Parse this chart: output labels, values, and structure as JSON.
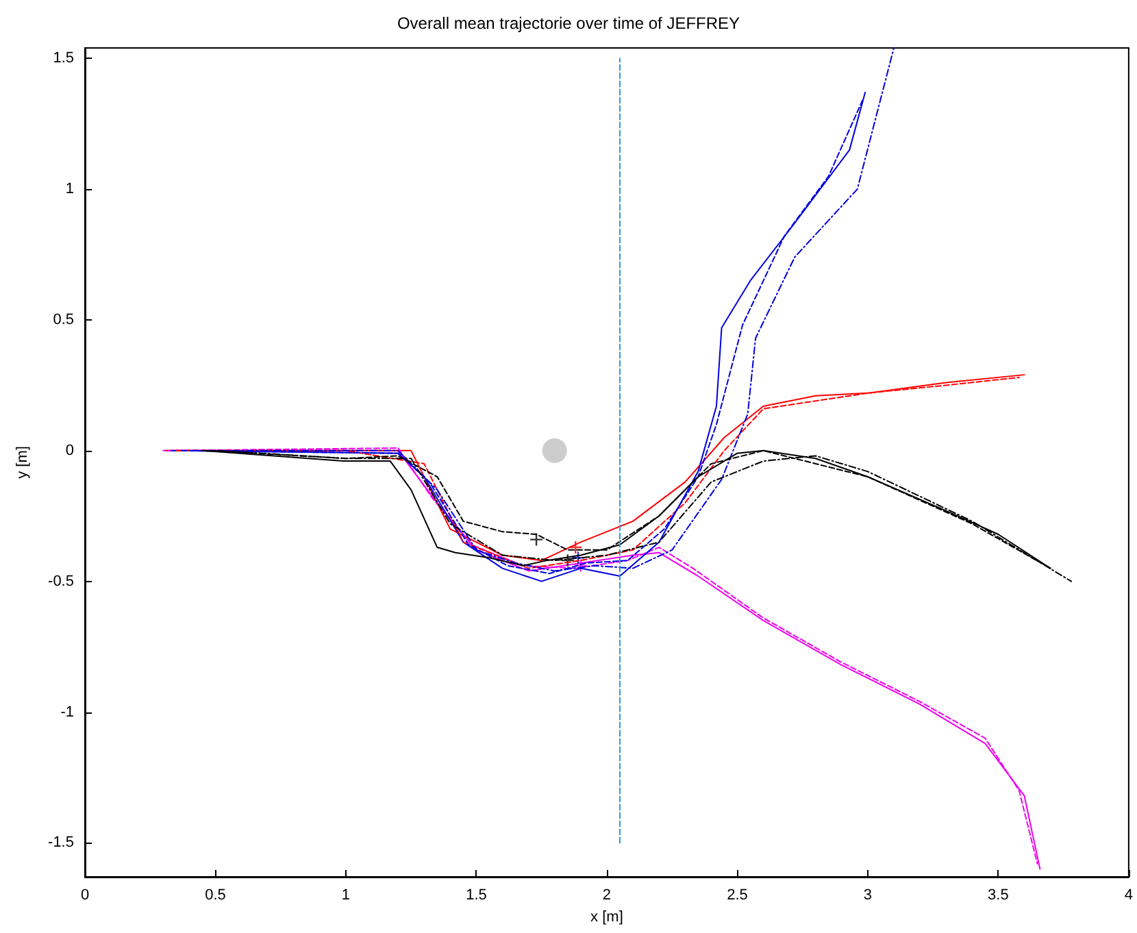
{
  "chart_data": {
    "type": "line",
    "title": "Overall mean trajectorie over time of JEFFREY",
    "xlabel": "x [m]",
    "ylabel": "y [m]",
    "xlim": [
      0,
      4
    ],
    "xticks": [
      0,
      0.5,
      1,
      1.5,
      2,
      2.5,
      3,
      3.5,
      4
    ],
    "ylim": [
      -1.63,
      1.54
    ],
    "yticks": [
      -1.5,
      -1,
      -0.5,
      0,
      0.5,
      1,
      1.5
    ],
    "grid": false,
    "marker": "none",
    "series": [
      {
        "color": "#000000",
        "line_style": "solid",
        "x": [
          0.45,
          0.99,
          1.17,
          1.25,
          1.35,
          1.42,
          1.55,
          1.68,
          1.77,
          1.9,
          2.05,
          2.2,
          2.35,
          2.5,
          2.6,
          2.8,
          3.0,
          3.3,
          3.5,
          3.7
        ],
        "values": [
          0,
          -0.04,
          -0.04,
          -0.15,
          -0.37,
          -0.39,
          -0.41,
          -0.44,
          -0.42,
          -0.4,
          -0.36,
          -0.25,
          -0.1,
          -0.01,
          0,
          -0.03,
          -0.1,
          -0.23,
          -0.32,
          -0.45
        ]
      },
      {
        "color": "#000000",
        "line_style": "dashed",
        "x": [
          0.48,
          1.0,
          1.2,
          1.35,
          1.45,
          1.6,
          1.73,
          1.85,
          2.0,
          2.2,
          2.4,
          2.6,
          3.0,
          3.4,
          3.7
        ],
        "values": [
          0,
          -0.03,
          -0.02,
          -0.1,
          -0.27,
          -0.31,
          -0.32,
          -0.38,
          -0.38,
          -0.25,
          -0.05,
          0,
          -0.1,
          -0.28,
          -0.45
        ]
      },
      {
        "color": "#000000",
        "line_style": "dashdot",
        "x": [
          0.51,
          1.0,
          1.25,
          1.4,
          1.6,
          1.8,
          2.0,
          2.2,
          2.4,
          2.6,
          2.8,
          3.0,
          3.4,
          3.78
        ],
        "values": [
          0,
          -0.03,
          -0.03,
          -0.28,
          -0.4,
          -0.42,
          -0.4,
          -0.35,
          -0.12,
          -0.04,
          -0.02,
          -0.08,
          -0.27,
          -0.5
        ]
      },
      {
        "color": "#0000dd",
        "line_style": "solid",
        "x": [
          0.33,
          1.2,
          1.3,
          1.45,
          1.6,
          1.75,
          1.9,
          2.05,
          2.2,
          2.35,
          2.42,
          2.44,
          2.55,
          2.72,
          2.93,
          2.99
        ],
        "values": [
          0,
          -0.01,
          -0.1,
          -0.35,
          -0.45,
          -0.5,
          -0.45,
          -0.48,
          -0.35,
          -0.08,
          0.17,
          0.47,
          0.65,
          0.87,
          1.15,
          1.37
        ]
      },
      {
        "color": "#0000dd",
        "line_style": "dashed",
        "x": [
          0.37,
          1.2,
          1.32,
          1.47,
          1.62,
          1.78,
          1.92,
          2.08,
          2.22,
          2.35,
          2.42,
          2.52,
          2.68,
          2.85,
          2.98
        ],
        "values": [
          0,
          -0.01,
          -0.12,
          -0.36,
          -0.44,
          -0.47,
          -0.43,
          -0.42,
          -0.3,
          -0.1,
          0.1,
          0.48,
          0.82,
          1.05,
          1.34
        ]
      },
      {
        "color": "#0000dd",
        "line_style": "dashdot",
        "x": [
          0.41,
          1.2,
          1.35,
          1.5,
          1.65,
          1.8,
          1.95,
          2.1,
          2.25,
          2.44,
          2.54,
          2.57,
          2.72,
          2.96,
          3.1
        ],
        "values": [
          0,
          0,
          -0.15,
          -0.38,
          -0.43,
          -0.46,
          -0.44,
          -0.45,
          -0.38,
          -0.11,
          0.14,
          0.43,
          0.74,
          1.0,
          1.54
        ]
      },
      {
        "color": "#ff0000",
        "line_style": "solid",
        "x": [
          0.31,
          1.0,
          1.25,
          1.4,
          1.6,
          1.75,
          1.9,
          2.1,
          2.3,
          2.45,
          2.6,
          2.8,
          3.0,
          3.3,
          3.6
        ],
        "values": [
          0,
          0,
          0,
          -0.3,
          -0.4,
          -0.42,
          -0.35,
          -0.27,
          -0.12,
          0.05,
          0.17,
          0.21,
          0.22,
          0.26,
          0.29
        ]
      },
      {
        "color": "#ff0000",
        "line_style": "dashed",
        "x": [
          0.35,
          1.0,
          1.3,
          1.45,
          1.7,
          1.9,
          2.1,
          2.3,
          2.45,
          2.6,
          3.0,
          3.3,
          3.58
        ],
        "values": [
          0,
          0,
          -0.05,
          -0.35,
          -0.45,
          -0.42,
          -0.38,
          -0.2,
          0,
          0.16,
          0.22,
          0.25,
          0.28
        ]
      },
      {
        "color": "#ee00ee",
        "line_style": "solid",
        "x": [
          0.3,
          1.2,
          1.35,
          1.5,
          1.7,
          1.9,
          2.1,
          2.2,
          2.35,
          2.6,
          2.9,
          3.2,
          3.45,
          3.6,
          3.66
        ],
        "values": [
          0,
          0,
          -0.2,
          -0.38,
          -0.46,
          -0.43,
          -0.4,
          -0.39,
          -0.48,
          -0.65,
          -0.82,
          -0.97,
          -1.12,
          -1.32,
          -1.6
        ]
      },
      {
        "color": "#ee00ee",
        "line_style": "dashed",
        "x": [
          0.32,
          1.2,
          1.33,
          1.48,
          1.68,
          1.88,
          2.08,
          2.2,
          2.33,
          2.6,
          2.9,
          3.2,
          3.45,
          3.58,
          3.65
        ],
        "values": [
          0,
          0.01,
          -0.18,
          -0.36,
          -0.44,
          -0.45,
          -0.42,
          -0.37,
          -0.45,
          -0.64,
          -0.81,
          -0.96,
          -1.1,
          -1.3,
          -1.58
        ]
      },
      {
        "color": "#3399dd",
        "line_style": "dashed",
        "x": [
          2.05,
          2.05
        ],
        "values": [
          -1.5,
          1.5
        ]
      },
      {
        "type": "scatter",
        "color": "#c0c0c0",
        "marker": "circle",
        "x": [
          1.8
        ],
        "values": [
          0
        ]
      },
      {
        "type": "scatter",
        "marker": "cross",
        "x": [
          1.73,
          1.85,
          1.89,
          1.9,
          1.88
        ],
        "values": [
          -0.34,
          -0.42,
          -0.41,
          -0.44,
          -0.37
        ],
        "colors": [
          "#000000",
          "#000000",
          "#0000dd",
          "#ee00ee",
          "#ff0000"
        ]
      }
    ]
  }
}
